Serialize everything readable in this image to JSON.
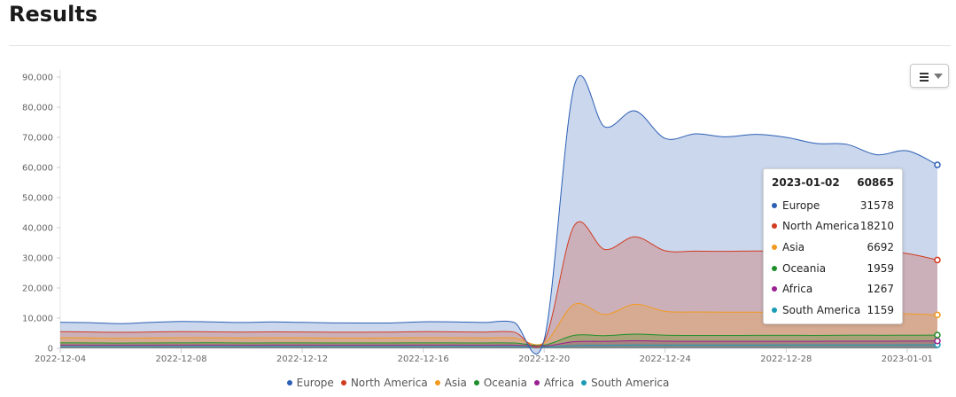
{
  "page": {
    "title": "Results"
  },
  "chart_data": {
    "type": "area",
    "stacked": true,
    "x": [
      "2022-12-04",
      "2022-12-05",
      "2022-12-06",
      "2022-12-07",
      "2022-12-08",
      "2022-12-09",
      "2022-12-10",
      "2022-12-11",
      "2022-12-12",
      "2022-12-13",
      "2022-12-14",
      "2022-12-15",
      "2022-12-16",
      "2022-12-17",
      "2022-12-18",
      "2022-12-19",
      "2022-12-20",
      "2022-12-21",
      "2022-12-22",
      "2022-12-23",
      "2022-12-24",
      "2022-12-25",
      "2022-12-26",
      "2022-12-27",
      "2022-12-28",
      "2022-12-29",
      "2022-12-30",
      "2022-12-31",
      "2023-01-01",
      "2023-01-02"
    ],
    "x_ticks": [
      "2022-12-04",
      "2022-12-08",
      "2022-12-12",
      "2022-12-16",
      "2022-12-20",
      "2022-12-24",
      "2022-12-28",
      "2023-01-01"
    ],
    "ylim": [
      0,
      90000
    ],
    "y_ticks": [
      "0",
      "10,000",
      "20,000",
      "30,000",
      "40,000",
      "50,000",
      "60,000",
      "70,000",
      "80,000",
      "90,000"
    ],
    "grid": false,
    "legend_position": "bottom",
    "series": [
      {
        "name": "South America",
        "color": "#1a9bb5",
        "values": [
          600,
          600,
          580,
          600,
          600,
          620,
          600,
          610,
          600,
          600,
          590,
          600,
          600,
          610,
          600,
          590,
          400,
          900,
          1000,
          1100,
          1050,
          1060,
          1070,
          1080,
          1100,
          1090,
          1120,
          1100,
          1130,
          1159
        ]
      },
      {
        "name": "Africa",
        "color": "#9b1f8f",
        "values": [
          500,
          480,
          470,
          480,
          490,
          500,
          480,
          480,
          490,
          480,
          470,
          480,
          490,
          480,
          470,
          480,
          300,
          1300,
          1300,
          1400,
          1300,
          1250,
          1240,
          1240,
          1230,
          1230,
          1240,
          1250,
          1260,
          1267
        ]
      },
      {
        "name": "Oceania",
        "color": "#1e8f2a",
        "values": [
          700,
          700,
          680,
          700,
          710,
          700,
          690,
          700,
          700,
          690,
          700,
          700,
          710,
          700,
          690,
          700,
          350,
          2100,
          1900,
          2200,
          2000,
          1950,
          1960,
          1970,
          1980,
          1960,
          1990,
          1970,
          1950,
          1959
        ]
      },
      {
        "name": "Asia",
        "color": "#f29a1f",
        "values": [
          1700,
          1650,
          1600,
          1650,
          1700,
          1680,
          1650,
          1680,
          1650,
          1600,
          1630,
          1650,
          1700,
          1680,
          1650,
          1640,
          700,
          10300,
          7000,
          9900,
          7900,
          7800,
          7700,
          7700,
          7600,
          7600,
          7500,
          7450,
          7100,
          6692
        ]
      },
      {
        "name": "North America",
        "color": "#d33b20",
        "values": [
          2000,
          1970,
          1950,
          1970,
          2000,
          1950,
          1950,
          1970,
          1950,
          1950,
          1940,
          1950,
          2000,
          1980,
          1950,
          1940,
          600,
          26200,
          21600,
          22400,
          20100,
          20200,
          20200,
          20300,
          20300,
          20300,
          20250,
          20250,
          20000,
          18210
        ]
      },
      {
        "name": "Europe",
        "color": "#2d5fb5",
        "values": [
          3100,
          3100,
          2900,
          3200,
          3400,
          3300,
          3200,
          3300,
          3200,
          3100,
          3050,
          3050,
          3300,
          3300,
          3200,
          3250,
          500,
          46500,
          40700,
          41800,
          37300,
          38900,
          38000,
          38700,
          37800,
          35800,
          35600,
          32200,
          34100,
          31578
        ]
      }
    ]
  },
  "tooltip": {
    "date": "2023-01-02",
    "total": "60865",
    "rows": [
      {
        "name": "Europe",
        "value": "31578",
        "color": "#2d5fb5"
      },
      {
        "name": "North America",
        "value": "18210",
        "color": "#d33b20"
      },
      {
        "name": "Asia",
        "value": "6692",
        "color": "#f29a1f"
      },
      {
        "name": "Oceania",
        "value": "1959",
        "color": "#1e8f2a"
      },
      {
        "name": "Africa",
        "value": "1267",
        "color": "#9b1f8f"
      },
      {
        "name": "South America",
        "value": "1159",
        "color": "#1a9bb5"
      }
    ]
  },
  "legend": [
    {
      "name": "Europe",
      "color": "#2d5fb5"
    },
    {
      "name": "North America",
      "color": "#d33b20"
    },
    {
      "name": "Asia",
      "color": "#f29a1f"
    },
    {
      "name": "Oceania",
      "color": "#1e8f2a"
    },
    {
      "name": "Africa",
      "color": "#9b1f8f"
    },
    {
      "name": "South America",
      "color": "#1a9bb5"
    }
  ],
  "menu": {
    "icon": "hamburger-menu-icon"
  }
}
